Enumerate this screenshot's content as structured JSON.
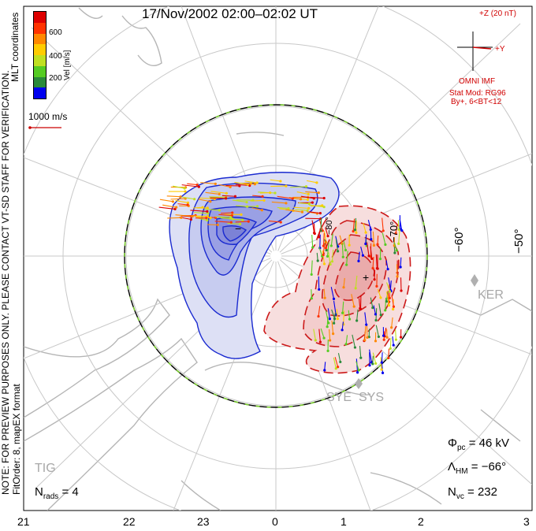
{
  "title": "17/Nov/2002 02:00–02:02 UT",
  "colorbar": {
    "label": "Vel [m/s]",
    "ticks": [
      "600",
      "400",
      "200"
    ],
    "colors": [
      "#0000ee",
      "#2a8a3a",
      "#55cc22",
      "#c0e020",
      "#ffcc00",
      "#ff8800",
      "#ff3300",
      "#dd0000"
    ]
  },
  "coordinates_label": "MLT coordinates",
  "scale_vector": "1000 m/s",
  "imf": {
    "z_label": "+Z (20 nT)",
    "y_label": "+Y",
    "source": "OMNI IMF",
    "model": "Stat Mod: RG96",
    "condition": "By+, 6<BT<12"
  },
  "notes": {
    "preview": "NOTE: FOR PREVIEW PURPOSES ONLY. PLEASE CONTACT VT-SD STAFF FOR VERIFICATION.",
    "fit": "FitOrder: 8, mapEX format"
  },
  "stats": {
    "phi_pc_symbol": "Φ",
    "phi_pc_sub": "pc",
    "phi_pc_value": "= 46 kV",
    "lambda_hm_symbol": "Λ",
    "lambda_hm_sub": "HM",
    "lambda_hm_value": "= −66°",
    "n_vc_symbol": "N",
    "n_vc_sub": "vc",
    "n_vc_value": "= 232",
    "n_rads_symbol": "N",
    "n_rads_sub": "rads",
    "n_rads_value": "= 4"
  },
  "mlt_labels": [
    "21",
    "22",
    "23",
    "0",
    "1",
    "2",
    "3"
  ],
  "latitude_labels": [
    "−50°",
    "−60°",
    "−70°",
    "−80°"
  ],
  "stations": [
    "KER",
    "SYE",
    "SYS",
    "TIG"
  ],
  "potential_extrema": [
    "−",
    "+"
  ],
  "colors": {
    "negative_cell": "#1a2ad0",
    "positive_cell": "#cc1a1a",
    "hm_boundary": "#000000",
    "hm_boundary_dash": "#7acc30",
    "grid": "#c8c8c8",
    "land": "#bdbdbd"
  }
}
